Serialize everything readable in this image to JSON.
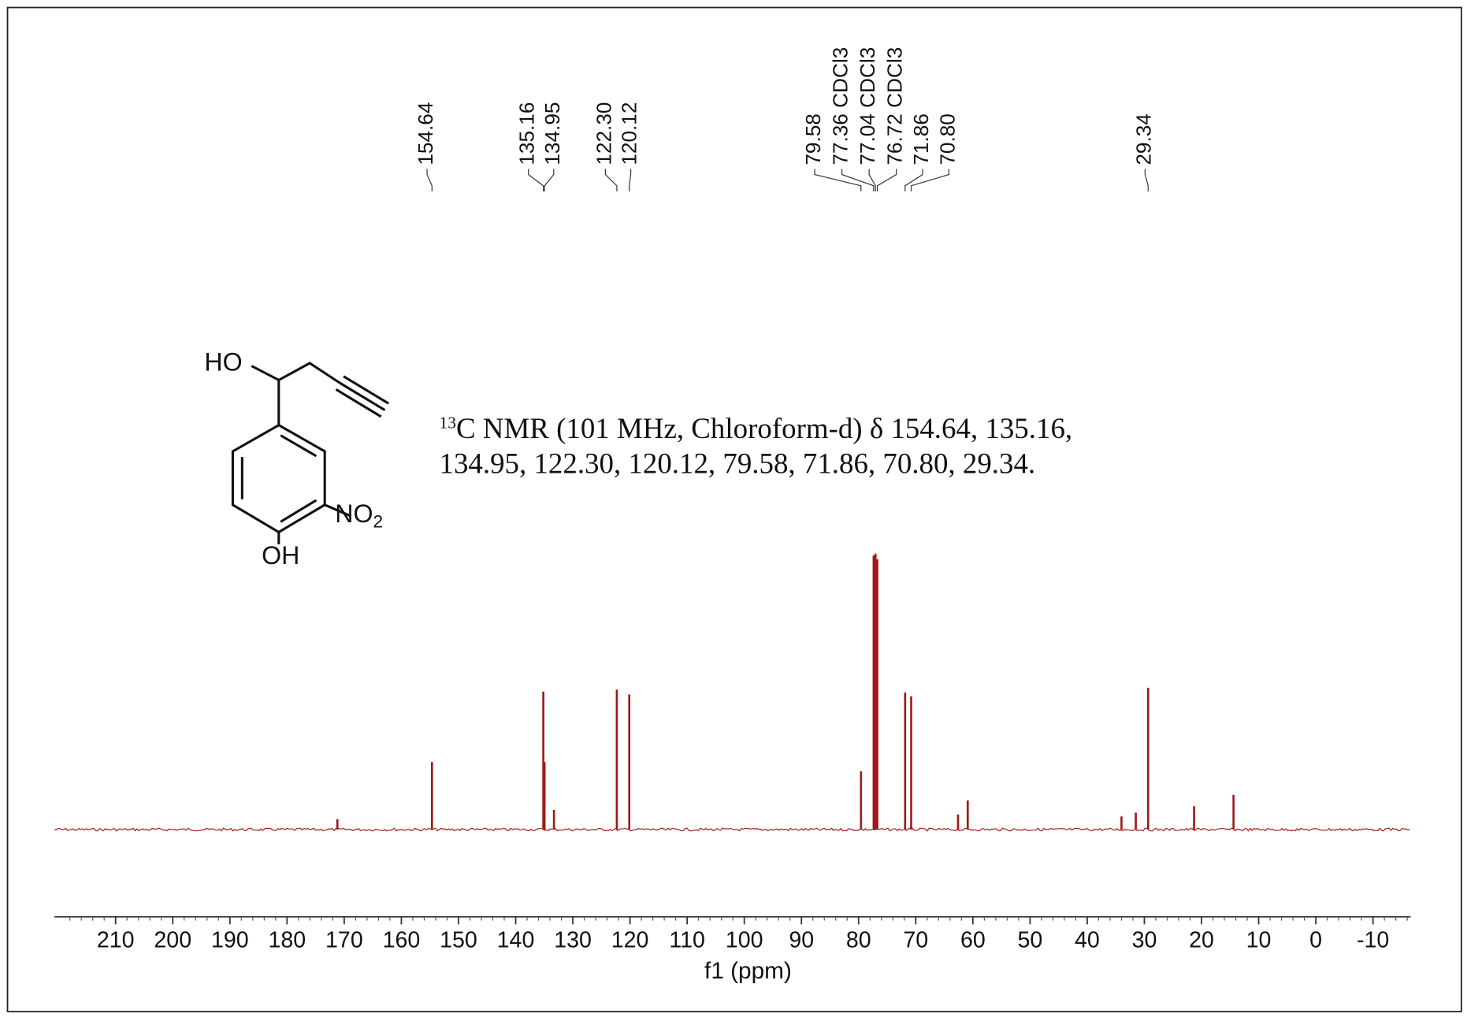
{
  "chart_data": {
    "type": "spectrum",
    "annotation": {
      "isotope": "13",
      "line1": "C NMR (101 MHz, Chloroform-d) δ 154.64, 135.16,",
      "line2": "134.95, 122.30, 120.12, 79.58, 71.86, 70.80, 29.34."
    },
    "structure": {
      "hydroxyl_top": "HO",
      "nitro": "NO",
      "nitro_sub": "2",
      "hydroxyl_bottom": "OH"
    },
    "xlabel": "f1 (ppm)",
    "xlim": [
      220.7,
      -16.6
    ],
    "xticks": [
      210,
      200,
      190,
      180,
      170,
      160,
      150,
      140,
      130,
      120,
      110,
      100,
      90,
      80,
      70,
      60,
      50,
      40,
      30,
      20,
      10,
      0,
      -10
    ],
    "color": "#a01818",
    "peaks": [
      {
        "ppm": 171.2,
        "intensity": 11
      },
      {
        "ppm": 154.64,
        "intensity": 72,
        "label": "154.64"
      },
      {
        "ppm": 135.16,
        "intensity": 147,
        "label": "135.16"
      },
      {
        "ppm": 134.95,
        "intensity": 72,
        "label": "134.95"
      },
      {
        "ppm": 133.3,
        "intensity": 21
      },
      {
        "ppm": 122.3,
        "intensity": 149,
        "label": "122.30"
      },
      {
        "ppm": 120.12,
        "intensity": 144,
        "label": "120.12"
      },
      {
        "ppm": 79.58,
        "intensity": 62,
        "label": "79.58"
      },
      {
        "ppm": 77.36,
        "intensity": 292,
        "label": "77.36 CDCl3"
      },
      {
        "ppm": 77.04,
        "intensity": 294,
        "label": "77.04 CDCl3"
      },
      {
        "ppm": 76.72,
        "intensity": 288,
        "label": "76.72 CDCl3"
      },
      {
        "ppm": 71.86,
        "intensity": 146,
        "label": "71.86"
      },
      {
        "ppm": 70.8,
        "intensity": 142,
        "label": "70.80"
      },
      {
        "ppm": 62.6,
        "intensity": 16
      },
      {
        "ppm": 60.9,
        "intensity": 31
      },
      {
        "ppm": 34.0,
        "intensity": 14
      },
      {
        "ppm": 31.5,
        "intensity": 18
      },
      {
        "ppm": 29.34,
        "intensity": 151,
        "label": "29.34"
      },
      {
        "ppm": 21.3,
        "intensity": 25
      },
      {
        "ppm": 14.4,
        "intensity": 37
      }
    ]
  }
}
